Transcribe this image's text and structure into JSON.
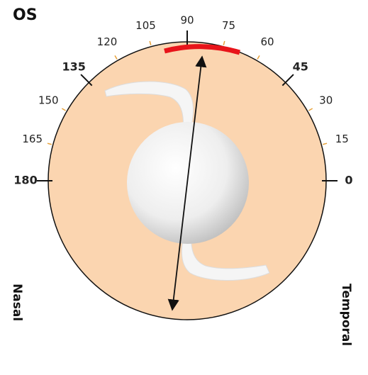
{
  "eye_label": "OS",
  "degree_ticks": [
    0,
    15,
    30,
    45,
    60,
    75,
    90,
    105,
    120,
    135,
    150,
    165,
    180
  ],
  "side_labels": {
    "left": "Nasal",
    "right": "Temporal"
  }
}
